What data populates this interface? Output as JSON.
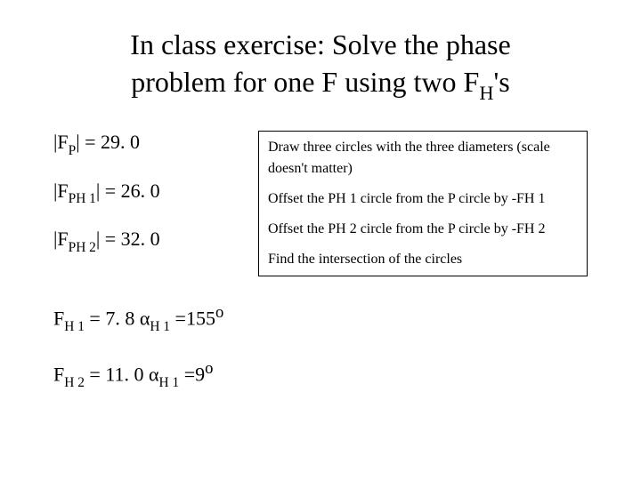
{
  "title_line1": "In class exercise: Solve the phase",
  "title_line2_pre": "problem for one F using two F",
  "title_line2_sub": "H",
  "title_line2_post": "'s",
  "left": {
    "fp_pre": "|F",
    "fp_sub": "P",
    "fp_post": "| = 29. 0",
    "fph1_pre": "|F",
    "fph1_sub": "PH 1",
    "fph1_post": "| = 26. 0",
    "fph2_pre": "|F",
    "fph2_sub": "PH 2",
    "fph2_post": "| = 32. 0"
  },
  "box": {
    "line1": "Draw three circles with the three diameters (scale doesn't matter)",
    "line2": "Offset the PH 1 circle from the P circle by -FH 1",
    "line3": "Offset the PH 2 circle from the P circle by -FH 2",
    "line4": "Find the intersection of the circles"
  },
  "bottom": {
    "fh1_f_pre": "F",
    "fh1_f_sub": "H 1",
    "fh1_f_val": " = 7. 8  ",
    "fh1_a_pre": "α",
    "fh1_a_sub": "H 1",
    "fh1_a_val": " =155",
    "fh1_deg": "o",
    "fh2_f_pre": "F",
    "fh2_f_sub": "H 2",
    "fh2_f_val": " = 11. 0  ",
    "fh2_a_pre": "α",
    "fh2_a_sub": "H 1",
    "fh2_a_val": " =9",
    "fh2_deg": "o"
  }
}
